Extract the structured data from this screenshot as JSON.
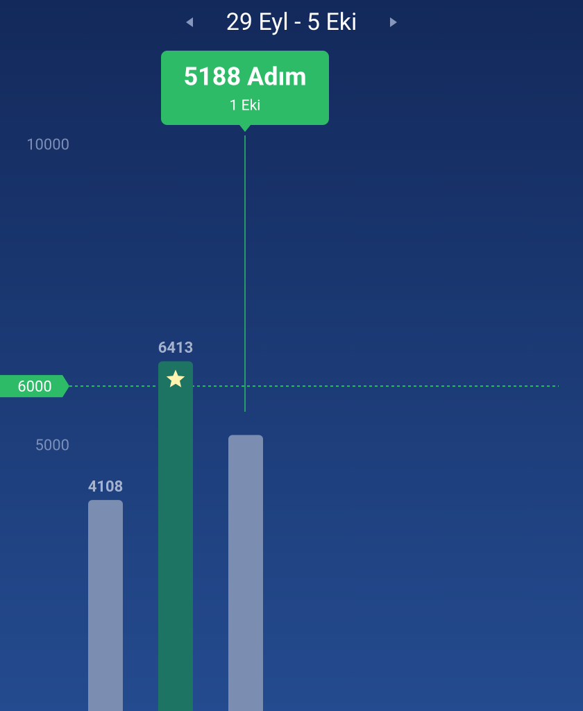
{
  "chart_data": {
    "type": "bar",
    "title": "29 Eyl - 5 Eki",
    "categories": [
      null,
      null,
      null
    ],
    "values": [
      4108,
      6413,
      5188
    ],
    "colors": [
      "#7b8db0",
      "#1e7462",
      "#7b8db0"
    ],
    "ylim": [
      600,
      12420
    ],
    "yticks": [
      5000,
      10000
    ],
    "goal": 6000,
    "goal_color": "#2dbb68",
    "tooltip": {
      "title": "5188 Adım",
      "date": "1 Eki"
    }
  }
}
